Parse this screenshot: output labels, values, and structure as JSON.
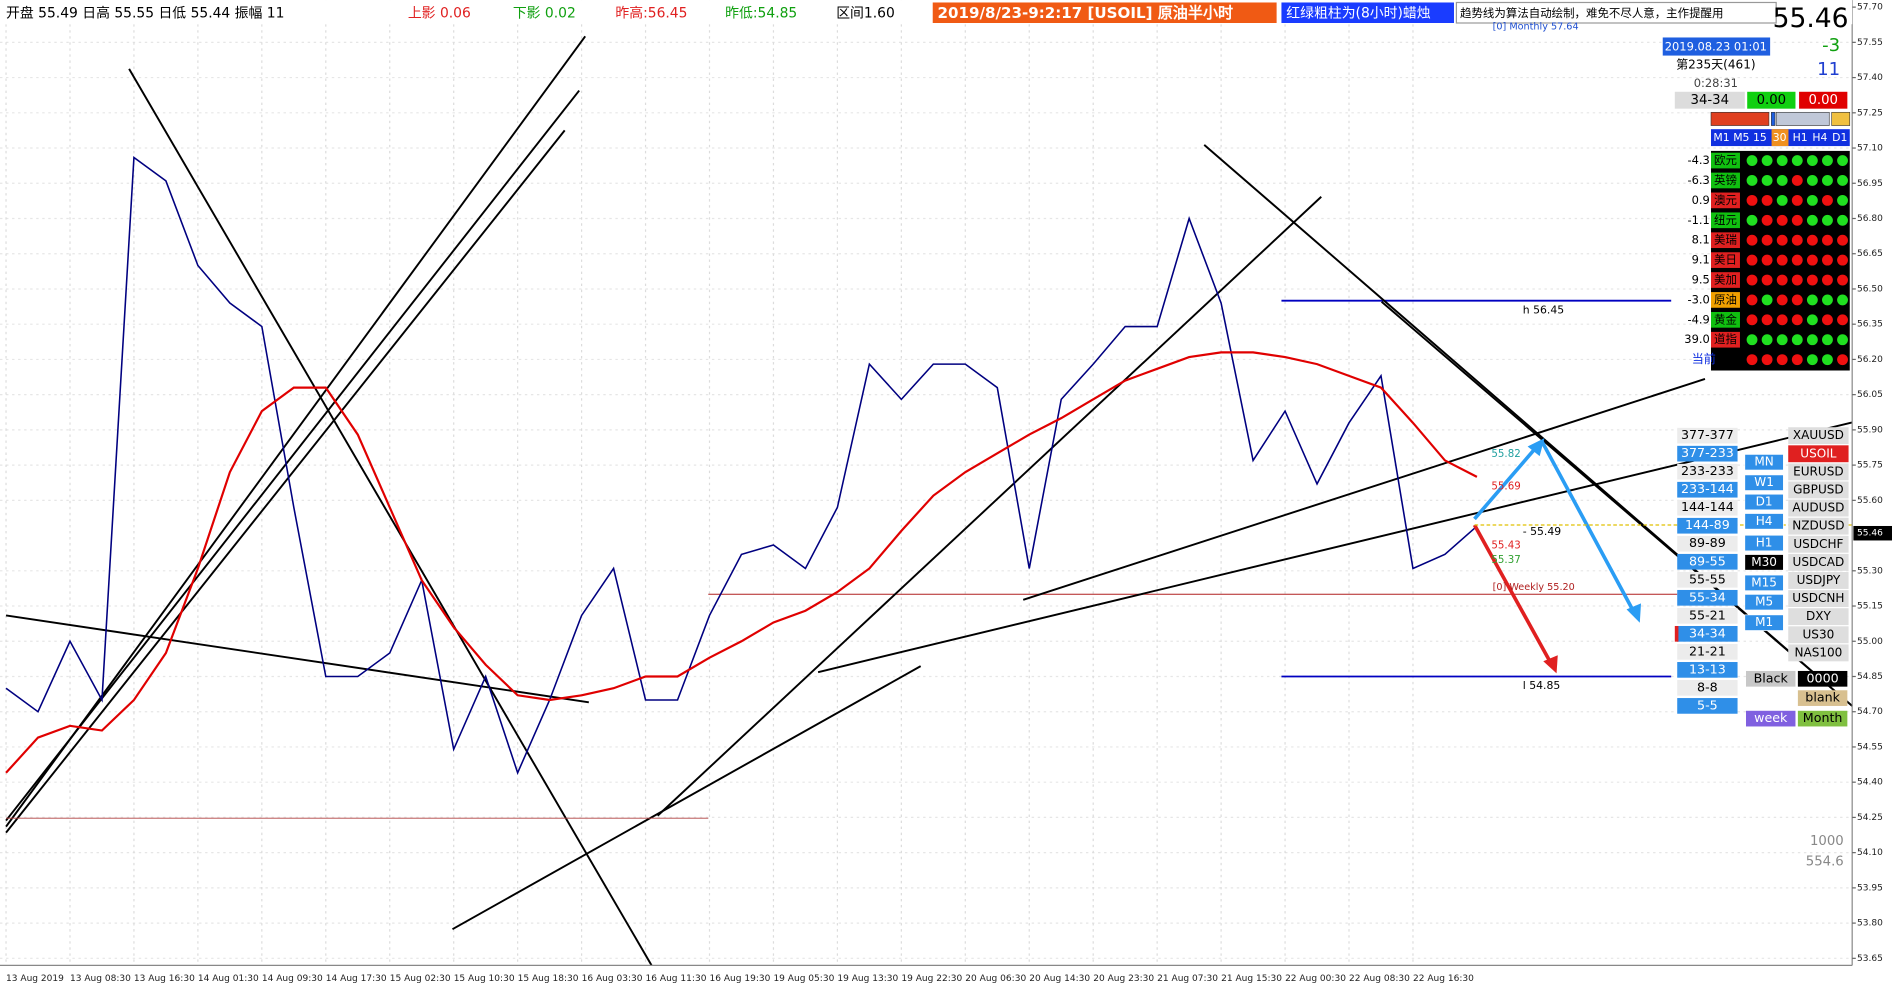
{
  "header": {
    "stats": "开盘 55.49 日高 55.55 日低 55.44 振幅 11",
    "upper_shadow": "上影 0.06",
    "lower_shadow": "下影 0.02",
    "prev_high": "昨高:56.45",
    "prev_low": "昨低:54.85",
    "range": "区间1.60",
    "title": "2019/8/23-9:2:17 [USOIL] 原油半小时",
    "legend_note": "红绿粗柱为(8小时)蜡烛",
    "disclaimer": "趋势线为算法自动绘制，难免不尽人意，主作提醒用",
    "price": "55.46",
    "monthly": "[0] Monthly 57.64"
  },
  "info": {
    "time": "2019.08.23 01:01",
    "change": "-3",
    "day": "第235天(461)",
    "count": "11",
    "countdown": "0:28:31",
    "ratio": "34-34",
    "buy": "0.00",
    "sell": "0.00",
    "timeframes": [
      "M1",
      "M5",
      "15",
      "30",
      "H1",
      "H4",
      "D1"
    ]
  },
  "strength": [
    {
      "value": "-4.3",
      "name": "欧元"
    },
    {
      "value": "-6.3",
      "name": "英镑"
    },
    {
      "value": "0.9",
      "name": "澳元"
    },
    {
      "value": "-1.1",
      "name": "纽元"
    },
    {
      "value": "8.1",
      "name": "美瑞"
    },
    {
      "value": "9.1",
      "name": "美日"
    },
    {
      "value": "9.5",
      "name": "美加"
    },
    {
      "value": "-3.0",
      "name": "原油"
    },
    {
      "value": "-4.9",
      "name": "黄金"
    },
    {
      "value": "39.0",
      "name": "道指"
    }
  ],
  "strength_current": "当前",
  "fib": [
    "377-377",
    "377-233",
    "233-233",
    "233-144",
    "144-144",
    "144-89",
    "89-89",
    "89-55",
    "55-55",
    "55-34",
    "55-21",
    "34-34",
    "21-21",
    "13-13",
    "8-8",
    "5-5"
  ],
  "periods": [
    "MN",
    "W1",
    "D1",
    "H4",
    "H1",
    "M30",
    "M15",
    "M5",
    "M1"
  ],
  "symbols": [
    "XAUUSD",
    "USOIL",
    "EURUSD",
    "GBPUSD",
    "AUDUSD",
    "NZDUSD",
    "USDCHF",
    "USDCAD",
    "USDJPY",
    "USDCNH",
    "DXY",
    "US30",
    "NAS100"
  ],
  "buttons": {
    "black": "Black",
    "code": "0000",
    "blank": "blank",
    "week": "week",
    "month": "Month"
  },
  "chart_data": {
    "type": "line",
    "categories": [
      "13 Aug 2019",
      null,
      "13 Aug 08:30",
      null,
      "13 Aug 16:30",
      null,
      "14 Aug 01:30",
      null,
      "14 Aug 09:30",
      null,
      "14 Aug 17:30",
      null,
      "15 Aug 02:30",
      null,
      "15 Aug 10:30",
      null,
      "15 Aug 18:30",
      null,
      "16 Aug 03:30",
      null,
      "16 Aug 11:30",
      null,
      "16 Aug 19:30",
      null,
      "19 Aug 05:30",
      null,
      "19 Aug 13:30",
      null,
      "19 Aug 22:30",
      null,
      "20 Aug 06:30",
      null,
      "20 Aug 14:30",
      null,
      "20 Aug 23:30",
      null,
      "21 Aug 07:30",
      null,
      "21 Aug 15:30",
      null,
      "22 Aug 00:30",
      null,
      "22 Aug 08:30",
      null,
      "22 Aug 16:30",
      null,
      null
    ],
    "series": [
      {
        "color": "#000080",
        "values": [
          54.8,
          54.7,
          55.0,
          54.75,
          57.06,
          56.96,
          56.6,
          56.44,
          56.34,
          55.57,
          54.85,
          54.85,
          54.95,
          55.26,
          54.54,
          54.85,
          54.44,
          54.75,
          55.11,
          55.31,
          54.75,
          54.75,
          55.11,
          55.37,
          55.41,
          55.31,
          55.57,
          56.18,
          56.03,
          56.18,
          56.18,
          56.08,
          55.31,
          56.03,
          56.18,
          56.34,
          56.34,
          56.8,
          56.44,
          55.77,
          55.98,
          55.67,
          55.93,
          56.13,
          55.31,
          55.37,
          55.49
        ]
      },
      {
        "color": "#e00000",
        "values": [
          54.44,
          54.59,
          54.64,
          54.62,
          54.75,
          54.95,
          55.31,
          55.72,
          55.98,
          56.08,
          56.08,
          55.88,
          55.57,
          55.26,
          55.06,
          54.9,
          54.77,
          54.75,
          54.77,
          54.8,
          54.85,
          54.85,
          54.93,
          55.0,
          55.08,
          55.13,
          55.21,
          55.31,
          55.47,
          55.62,
          55.72,
          55.8,
          55.88,
          55.95,
          56.03,
          56.11,
          56.16,
          56.21,
          56.23,
          56.23,
          56.21,
          56.18,
          56.13,
          56.08,
          55.93,
          55.77,
          55.7
        ]
      }
    ],
    "ylim": [
      53.62,
      57.73
    ],
    "yticks": [
      {
        "value": 57.7,
        "label": "57.70"
      },
      57.55,
      {
        "value": 57.4,
        "label": "57.40"
      },
      57.25,
      {
        "value": 57.1,
        "label": "57.10"
      },
      56.95,
      {
        "value": 56.8,
        "label": "56.80"
      },
      56.65,
      {
        "value": 56.5,
        "label": "56.50"
      },
      56.35,
      {
        "value": 56.2,
        "label": "56.20"
      },
      56.05,
      {
        "value": 55.9,
        "label": "55.90"
      },
      55.75,
      {
        "value": 55.6,
        "label": "55.60"
      },
      {
        "value": 55.3,
        "label": "55.30"
      },
      55.15,
      {
        "value": 55,
        "label": "55.00"
      },
      54.85,
      {
        "value": 54.7,
        "label": "54.70"
      },
      54.55,
      {
        "value": 54.4,
        "label": "54.40"
      },
      54.25,
      {
        "value": 54.1,
        "label": "54.10"
      },
      53.95,
      {
        "value": 53.8,
        "label": "53.80"
      },
      53.65
    ],
    "grid": true,
    "current_price": 55.46,
    "levels": [
      {
        "label": "h 56.45",
        "value": 56.45,
        "color": "#0000c0"
      },
      {
        "label": "l 54.85",
        "value": 54.85,
        "color": "#0000c0"
      },
      {
        "label": "[0] Weekly 55.20",
        "value": 55.2,
        "color": "#b02020"
      }
    ],
    "annotations": [
      "- 55.49",
      "55.82",
      "55.69",
      "55.43",
      "55.37",
      "1000",
      "554.6"
    ]
  }
}
